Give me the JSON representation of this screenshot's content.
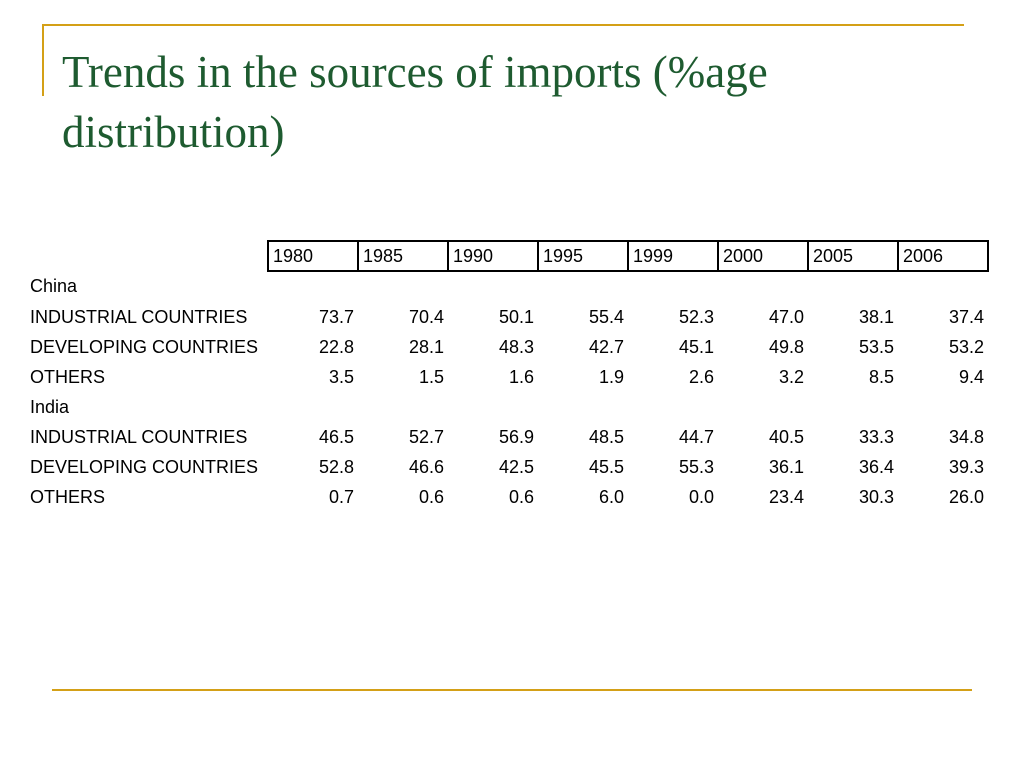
{
  "title": "Trends in the sources of imports (%age distribution)",
  "table": {
    "years": [
      "1980",
      "1985",
      "1990",
      "1995",
      "1999",
      "2000",
      "2005",
      "2006"
    ],
    "groups": [
      {
        "name": "China",
        "rows": [
          {
            "label": "INDUSTRIAL COUNTRIES",
            "values": [
              "73.7",
              "70.4",
              "50.1",
              "55.4",
              "52.3",
              "47.0",
              "38.1",
              "37.4"
            ]
          },
          {
            "label": "DEVELOPING COUNTRIES",
            "values": [
              "22.8",
              "28.1",
              "48.3",
              "42.7",
              "45.1",
              "49.8",
              "53.5",
              "53.2"
            ]
          },
          {
            "label": "OTHERS",
            "values": [
              "3.5",
              "1.5",
              "1.6",
              "1.9",
              "2.6",
              "3.2",
              "8.5",
              "9.4"
            ]
          }
        ]
      },
      {
        "name": "India",
        "rows": [
          {
            "label": "INDUSTRIAL COUNTRIES",
            "values": [
              "46.5",
              "52.7",
              "56.9",
              "48.5",
              "44.7",
              "40.5",
              "33.3",
              "34.8"
            ]
          },
          {
            "label": "DEVELOPING COUNTRIES",
            "values": [
              "52.8",
              "46.6",
              "42.5",
              "45.5",
              "55.3",
              "36.1",
              "36.4",
              "39.3"
            ]
          },
          {
            "label": "OTHERS",
            "values": [
              "0.7",
              "0.6",
              "0.6",
              "6.0",
              "0.0",
              "23.4",
              "30.3",
              "26.0"
            ]
          }
        ]
      }
    ]
  },
  "colors": {
    "title": "#1e5b30",
    "accent_rule": "#d4a017",
    "text": "#000000"
  }
}
